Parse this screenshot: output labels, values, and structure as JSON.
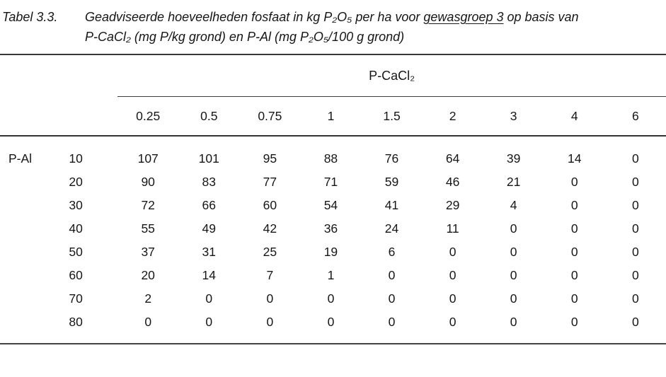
{
  "title": {
    "label": "Tabel 3.3.",
    "line1_pre": "Geadviseerde hoeveelheden fosfaat in kg P₂O₅ per ha voor ",
    "line1_underlined": "gewasgroep 3",
    "line1_post": " op basis van",
    "line2": "P-CaCl₂ (mg P/kg grond) en P-Al (mg P₂O₅/100 g grond)"
  },
  "table": {
    "group_header": "P-CaCl₂",
    "row_axis_label": "P-Al",
    "col_headers": [
      "0.25",
      "0.5",
      "0.75",
      "1",
      "1.5",
      "2",
      "3",
      "4",
      "6"
    ],
    "rows": [
      {
        "p_al": "10",
        "values": [
          107,
          101,
          95,
          88,
          76,
          64,
          39,
          14,
          0
        ]
      },
      {
        "p_al": "20",
        "values": [
          90,
          83,
          77,
          71,
          59,
          46,
          21,
          0,
          0
        ]
      },
      {
        "p_al": "30",
        "values": [
          72,
          66,
          60,
          54,
          41,
          29,
          4,
          0,
          0
        ]
      },
      {
        "p_al": "40",
        "values": [
          55,
          49,
          42,
          36,
          24,
          11,
          0,
          0,
          0
        ]
      },
      {
        "p_al": "50",
        "values": [
          37,
          31,
          25,
          19,
          6,
          0,
          0,
          0,
          0
        ]
      },
      {
        "p_al": "60",
        "values": [
          20,
          14,
          7,
          1,
          0,
          0,
          0,
          0,
          0
        ]
      },
      {
        "p_al": "70",
        "values": [
          2,
          0,
          0,
          0,
          0,
          0,
          0,
          0,
          0
        ]
      },
      {
        "p_al": "80",
        "values": [
          0,
          0,
          0,
          0,
          0,
          0,
          0,
          0,
          0
        ]
      }
    ]
  }
}
